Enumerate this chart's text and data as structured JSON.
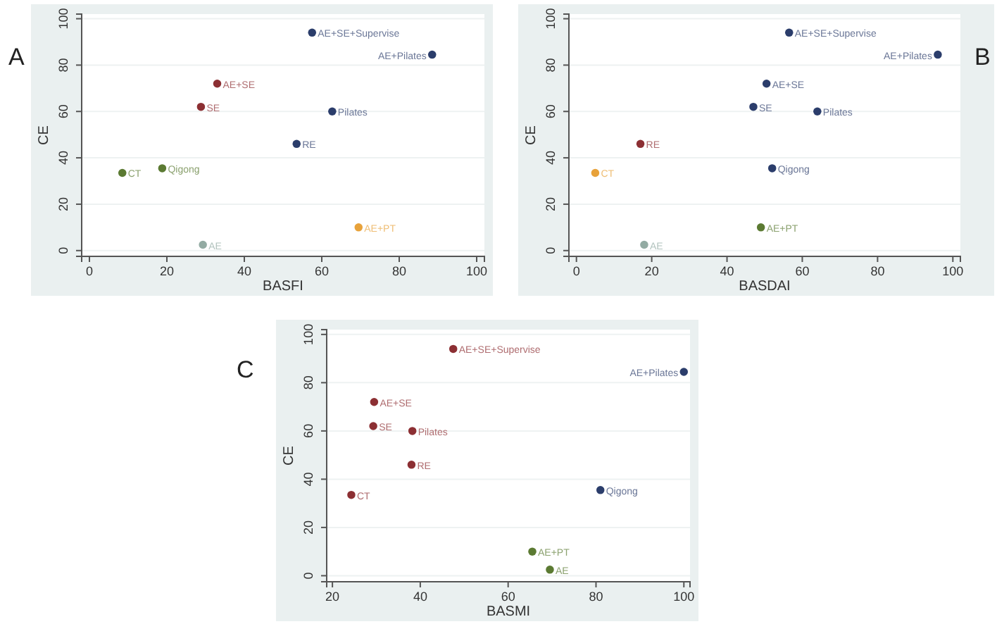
{
  "chart_data": [
    {
      "type": "scatter",
      "title": "A",
      "xlabel": "BASFI",
      "ylabel": "CE",
      "xlim": [
        -2,
        102
      ],
      "ylim": [
        -2.5,
        102
      ],
      "xticks": [
        0,
        20,
        40,
        60,
        80,
        100
      ],
      "yticks": [
        0,
        20,
        40,
        60,
        80,
        100
      ],
      "grid": "y",
      "marker": "circle",
      "series": [
        {
          "name": "AE+SE+Supervise",
          "color": "#2b3d6b",
          "x": [
            57.5
          ],
          "values": [
            94
          ]
        },
        {
          "name": "AE+Pilates",
          "color": "#2b3d6b",
          "x": [
            88.5
          ],
          "values": [
            84.5
          ]
        },
        {
          "name": "AE+SE",
          "color": "#8c2f33",
          "x": [
            33
          ],
          "values": [
            72
          ]
        },
        {
          "name": "SE",
          "color": "#8c2f33",
          "x": [
            28.8
          ],
          "values": [
            62
          ]
        },
        {
          "name": "Pilates",
          "color": "#2b3d6b",
          "x": [
            62.7
          ],
          "values": [
            60
          ]
        },
        {
          "name": "RE",
          "color": "#2b3d6b",
          "x": [
            53.5
          ],
          "values": [
            46
          ]
        },
        {
          "name": "Qigong",
          "color": "#5b7a32",
          "x": [
            18.8
          ],
          "values": [
            35.5
          ]
        },
        {
          "name": "CT",
          "color": "#5b7a32",
          "x": [
            8.5
          ],
          "values": [
            33.5
          ]
        },
        {
          "name": "AE+PT",
          "color": "#e8a23a",
          "x": [
            69.5
          ],
          "values": [
            10
          ]
        },
        {
          "name": "AE",
          "color": "#93aba3",
          "x": [
            29.3
          ],
          "values": [
            2.5
          ]
        }
      ]
    },
    {
      "type": "scatter",
      "title": "B",
      "xlabel": "BASDAI",
      "ylabel": "CE",
      "xlim": [
        -2,
        102
      ],
      "ylim": [
        -2.5,
        102
      ],
      "xticks": [
        0,
        20,
        40,
        60,
        80,
        100
      ],
      "yticks": [
        0,
        20,
        40,
        60,
        80,
        100
      ],
      "grid": "y",
      "marker": "circle",
      "series": [
        {
          "name": "AE+SE+Supervise",
          "color": "#2b3d6b",
          "x": [
            56.5
          ],
          "values": [
            94
          ]
        },
        {
          "name": "AE+Pilates",
          "color": "#2b3d6b",
          "x": [
            96
          ],
          "values": [
            84.5
          ]
        },
        {
          "name": "AE+SE",
          "color": "#2b3d6b",
          "x": [
            50.5
          ],
          "values": [
            72
          ]
        },
        {
          "name": "SE",
          "color": "#2b3d6b",
          "x": [
            47
          ],
          "values": [
            62
          ]
        },
        {
          "name": "Pilates",
          "color": "#2b3d6b",
          "x": [
            64
          ],
          "values": [
            60
          ]
        },
        {
          "name": "RE",
          "color": "#8c2f33",
          "x": [
            17
          ],
          "values": [
            46
          ]
        },
        {
          "name": "Qigong",
          "color": "#2b3d6b",
          "x": [
            52
          ],
          "values": [
            35.5
          ]
        },
        {
          "name": "CT",
          "color": "#e8a23a",
          "x": [
            5
          ],
          "values": [
            33.5
          ]
        },
        {
          "name": "AE+PT",
          "color": "#5b7a32",
          "x": [
            49
          ],
          "values": [
            10
          ]
        },
        {
          "name": "AE",
          "color": "#93aba3",
          "x": [
            18
          ],
          "values": [
            2.5
          ]
        }
      ]
    },
    {
      "type": "scatter",
      "title": "C",
      "xlabel": "BASMI",
      "ylabel": "CE",
      "xlim": [
        18.7,
        101.4
      ],
      "ylim": [
        -2.5,
        102
      ],
      "xticks": [
        20,
        40,
        60,
        80,
        100
      ],
      "yticks": [
        0,
        20,
        40,
        60,
        80,
        100
      ],
      "grid": "y",
      "marker": "circle",
      "series": [
        {
          "name": "AE+SE+Supervise",
          "color": "#8c2f33",
          "x": [
            47.5
          ],
          "values": [
            94
          ]
        },
        {
          "name": "AE+Pilates",
          "color": "#2b3d6b",
          "x": [
            100
          ],
          "values": [
            84.5
          ]
        },
        {
          "name": "AE+SE",
          "color": "#8c2f33",
          "x": [
            29.5
          ],
          "values": [
            72
          ]
        },
        {
          "name": "SE",
          "color": "#8c2f33",
          "x": [
            29.3
          ],
          "values": [
            62
          ]
        },
        {
          "name": "Pilates",
          "color": "#8c2f33",
          "x": [
            38.2
          ],
          "values": [
            60
          ]
        },
        {
          "name": "RE",
          "color": "#8c2f33",
          "x": [
            38
          ],
          "values": [
            46
          ]
        },
        {
          "name": "Qigong",
          "color": "#2b3d6b",
          "x": [
            81
          ],
          "values": [
            35.5
          ]
        },
        {
          "name": "CT",
          "color": "#8c2f33",
          "x": [
            24.3
          ],
          "values": [
            33.5
          ]
        },
        {
          "name": "AE+PT",
          "color": "#5b7a32",
          "x": [
            65.5
          ],
          "values": [
            10
          ]
        },
        {
          "name": "AE",
          "color": "#5b7a32",
          "x": [
            69.5
          ],
          "values": [
            2.5
          ]
        }
      ]
    }
  ]
}
